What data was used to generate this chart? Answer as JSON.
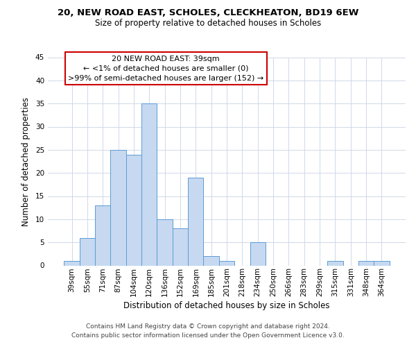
{
  "title": "20, NEW ROAD EAST, SCHOLES, CLECKHEATON, BD19 6EW",
  "subtitle": "Size of property relative to detached houses in Scholes",
  "xlabel": "Distribution of detached houses by size in Scholes",
  "ylabel": "Number of detached properties",
  "footer_line1": "Contains HM Land Registry data © Crown copyright and database right 2024.",
  "footer_line2": "Contains public sector information licensed under the Open Government Licence v3.0.",
  "bar_labels": [
    "39sqm",
    "55sqm",
    "71sqm",
    "87sqm",
    "104sqm",
    "120sqm",
    "136sqm",
    "152sqm",
    "169sqm",
    "185sqm",
    "201sqm",
    "218sqm",
    "234sqm",
    "250sqm",
    "266sqm",
    "283sqm",
    "299sqm",
    "315sqm",
    "331sqm",
    "348sqm",
    "364sqm"
  ],
  "bar_values": [
    1,
    6,
    13,
    25,
    24,
    35,
    10,
    8,
    19,
    2,
    1,
    0,
    5,
    0,
    0,
    0,
    0,
    1,
    0,
    1,
    1
  ],
  "bar_color": "#c6d9f0",
  "bar_edge_color": "#5b9bd5",
  "ylim": [
    0,
    45
  ],
  "yticks": [
    0,
    5,
    10,
    15,
    20,
    25,
    30,
    35,
    40,
    45
  ],
  "annotation_line1": "20 NEW ROAD EAST: 39sqm",
  "annotation_line2": "← <1% of detached houses are smaller (0)",
  "annotation_line3": ">99% of semi-detached houses are larger (152) →",
  "annotation_box_color": "#ffffff",
  "annotation_box_edge_color": "#cc0000",
  "background_color": "#ffffff",
  "grid_color": "#d0d8e8",
  "title_fontsize": 9.5,
  "subtitle_fontsize": 8.5,
  "xlabel_fontsize": 8.5,
  "ylabel_fontsize": 8.5,
  "tick_fontsize": 7.5,
  "annotation_fontsize": 8.0,
  "footer_fontsize": 6.5
}
